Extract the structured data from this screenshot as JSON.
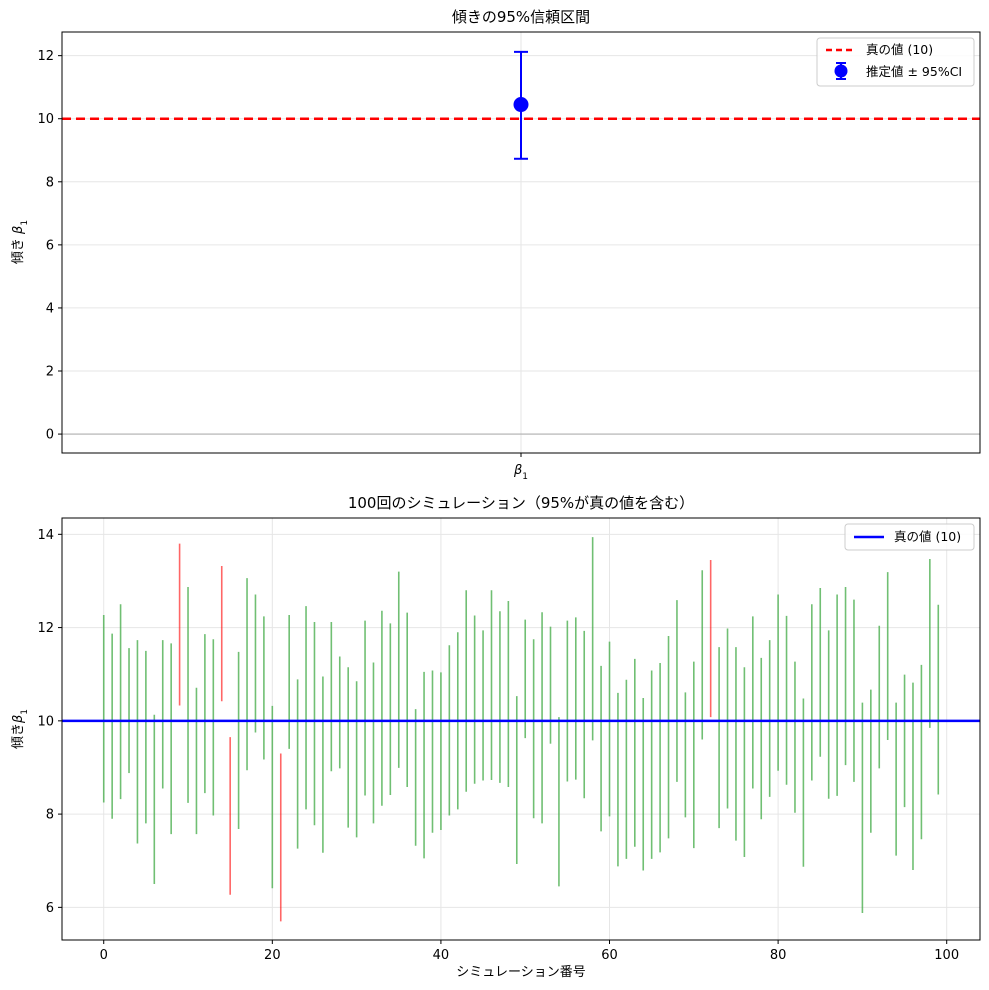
{
  "chart_data": [
    {
      "type": "errorbar",
      "title": "傾きの95%信頼区間",
      "ylabel": "傾き β1",
      "ylabel_parts": {
        "prefix": "傾き ",
        "symbol": "β",
        "sub": "1"
      },
      "xtick_label": {
        "symbol": "β",
        "sub": "1"
      },
      "ylim": [
        -0.6,
        12.75
      ],
      "yticks": [
        0,
        2,
        4,
        6,
        8,
        10,
        12
      ],
      "grid": true,
      "legend_position": "top-right",
      "estimate": {
        "value": 10.45,
        "ci_low": 8.73,
        "ci_high": 12.12,
        "color": "#0000ff"
      },
      "true_value": {
        "value": 10,
        "color": "#ff0000",
        "style": "dashed"
      },
      "zero_line": {
        "value": 0,
        "color": "#b0b0b0"
      },
      "legend": [
        {
          "label": "真の値 (10)",
          "kind": "dashed-line",
          "color": "#ff0000"
        },
        {
          "label": "推定値 ± 95%CI",
          "kind": "errorbar-marker",
          "color": "#0000ff"
        }
      ]
    },
    {
      "type": "interval",
      "title": "100回のシミュレーション（95%が真の値を含む）",
      "xlabel": "シミュレーション番号",
      "ylabel": "傾きβ1",
      "ylabel_parts": {
        "prefix": "傾き",
        "symbol": "β",
        "sub": "1"
      },
      "xlim": [
        -4.95,
        103.95
      ],
      "ylim": [
        5.3,
        14.35
      ],
      "xticks": [
        0,
        20,
        40,
        60,
        80,
        100
      ],
      "yticks": [
        6,
        8,
        10,
        12,
        14
      ],
      "grid": true,
      "legend_position": "top-right",
      "true_value": {
        "value": 10,
        "color": "#0000ff"
      },
      "colors": {
        "contains": "#4caf50",
        "misses": "#ff0000"
      },
      "legend": [
        {
          "label": "真の値 (10)",
          "kind": "solid-line",
          "color": "#0000ff"
        }
      ],
      "intervals": [
        [
          8.25,
          12.27
        ],
        [
          7.9,
          11.87
        ],
        [
          8.32,
          12.5
        ],
        [
          8.88,
          11.56
        ],
        [
          7.37,
          11.73
        ],
        [
          7.8,
          11.5
        ],
        [
          6.5,
          10.13
        ],
        [
          8.55,
          11.73
        ],
        [
          7.57,
          11.66
        ],
        [
          10.33,
          13.8
        ],
        [
          8.24,
          12.87
        ],
        [
          7.57,
          10.71
        ],
        [
          8.45,
          11.86
        ],
        [
          7.97,
          11.75
        ],
        [
          10.42,
          13.32
        ],
        [
          6.27,
          9.65
        ],
        [
          7.68,
          11.48
        ],
        [
          8.94,
          13.06
        ],
        [
          9.75,
          12.71
        ],
        [
          9.17,
          12.24
        ],
        [
          6.41,
          10.32
        ],
        [
          5.7,
          9.3
        ],
        [
          9.4,
          12.27
        ],
        [
          7.26,
          10.89
        ],
        [
          8.1,
          12.46
        ],
        [
          7.76,
          12.12
        ],
        [
          7.17,
          10.95
        ],
        [
          8.92,
          12.12
        ],
        [
          8.98,
          11.38
        ],
        [
          7.71,
          11.15
        ],
        [
          7.5,
          10.85
        ],
        [
          8.4,
          12.15
        ],
        [
          7.8,
          11.25
        ],
        [
          8.18,
          12.36
        ],
        [
          8.41,
          12.09
        ],
        [
          8.99,
          13.2
        ],
        [
          8.58,
          12.32
        ],
        [
          7.32,
          10.25
        ],
        [
          7.05,
          11.05
        ],
        [
          7.6,
          11.08
        ],
        [
          7.66,
          11.04
        ],
        [
          7.97,
          11.62
        ],
        [
          8.1,
          11.9
        ],
        [
          8.48,
          12.8
        ],
        [
          8.65,
          12.26
        ],
        [
          8.72,
          11.94
        ],
        [
          8.73,
          12.8
        ],
        [
          8.67,
          12.35
        ],
        [
          8.58,
          12.57
        ],
        [
          6.93,
          10.53
        ],
        [
          9.63,
          12.17
        ],
        [
          7.91,
          11.75
        ],
        [
          7.8,
          12.33
        ],
        [
          9.51,
          12.02
        ],
        [
          6.45,
          10.08
        ],
        [
          8.7,
          12.15
        ],
        [
          8.74,
          12.22
        ],
        [
          8.34,
          11.93
        ],
        [
          9.58,
          13.94
        ],
        [
          7.63,
          11.18
        ],
        [
          7.95,
          11.7
        ],
        [
          6.88,
          10.6
        ],
        [
          7.04,
          10.88
        ],
        [
          7.3,
          11.33
        ],
        [
          6.79,
          10.49
        ],
        [
          7.04,
          11.08
        ],
        [
          7.18,
          11.24
        ],
        [
          7.48,
          11.82
        ],
        [
          8.69,
          12.59
        ],
        [
          7.93,
          10.61
        ],
        [
          7.27,
          11.27
        ],
        [
          9.6,
          13.23
        ],
        [
          10.08,
          13.45
        ],
        [
          7.7,
          11.58
        ],
        [
          8.12,
          11.98
        ],
        [
          7.43,
          11.58
        ],
        [
          7.08,
          11.15
        ],
        [
          8.55,
          12.24
        ],
        [
          7.89,
          11.35
        ],
        [
          8.37,
          11.73
        ],
        [
          8.93,
          12.71
        ],
        [
          8.63,
          12.25
        ],
        [
          8.03,
          11.27
        ],
        [
          6.87,
          10.48
        ],
        [
          8.72,
          12.5
        ],
        [
          9.23,
          12.85
        ],
        [
          8.33,
          11.94
        ],
        [
          8.39,
          12.71
        ],
        [
          9.05,
          12.87
        ],
        [
          8.69,
          12.6
        ],
        [
          5.88,
          10.39
        ],
        [
          7.6,
          10.67
        ],
        [
          8.98,
          12.04
        ],
        [
          9.59,
          13.19
        ],
        [
          7.11,
          10.39
        ],
        [
          8.15,
          10.99
        ],
        [
          6.8,
          10.82
        ],
        [
          7.46,
          11.2
        ],
        [
          9.85,
          13.47
        ],
        [
          8.42,
          12.49
        ]
      ]
    }
  ]
}
